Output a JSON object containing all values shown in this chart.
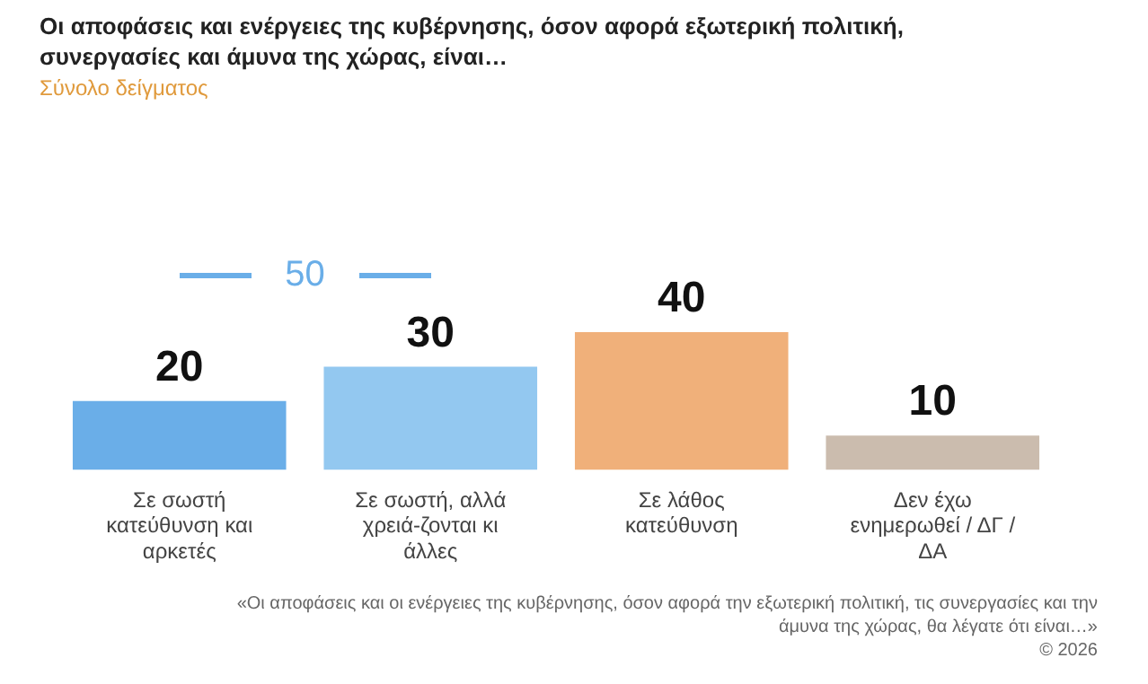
{
  "chart_data": {
    "type": "bar",
    "title": "Οι αποφάσεις και ενέργειες της κυβέρνησης, όσον αφορά εξωτερική πολιτική, συνεργασίες και άμυνα της χώρας, είναι…",
    "subtitle": "Σύνολο δείγματος",
    "categories": [
      "Σε σωστή κατεύθυνση και αρκετές",
      "Σε σωστή, αλλά χρειά-ζονται κι άλλες",
      "Σε λάθος κατεύθυνση",
      "Δεν έχω ενημερωθεί / ΔΓ / ΔΑ"
    ],
    "values": [
      20,
      30,
      40,
      10
    ],
    "colors": [
      "#6aaee8",
      "#93c8f0",
      "#f0b07a",
      "#cbbcae"
    ],
    "data_labels": true,
    "grid": false,
    "legend": false,
    "tick_labels": "x",
    "annotations": [
      "50",
      "«Οι αποφάσεις και οι ενέργειες της κυβέρνησης, όσον αφορά την εξωτερική πολιτική, τις συνεργασίες και την άμυνα της χώρας, θα λέγατε ότι είναι…»",
      "© 2026"
    ]
  }
}
